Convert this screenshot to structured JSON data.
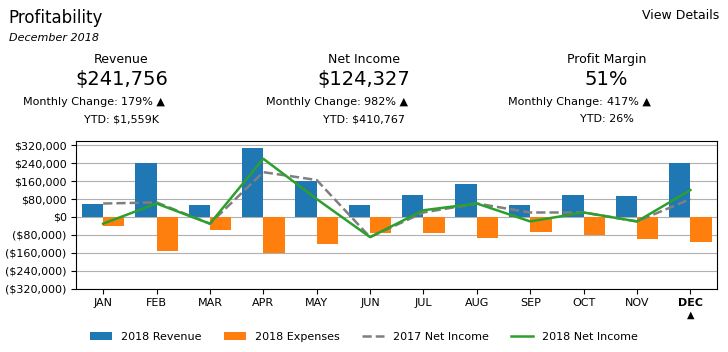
{
  "chart_data": {
    "type": "bar",
    "title": "Profitability",
    "subtitle": "December 2018",
    "annotations": {
      "link": "View Details",
      "highlight": "▲",
      "kpis": [
        {
          "label": "Revenue",
          "value": "$241,756",
          "change_label": "Monthly Change: ",
          "change": "179% ▲",
          "ytd": "YTD: $1,559K"
        },
        {
          "label": "Net Income",
          "value": "$124,327",
          "change_label": "Monthly Change: ",
          "change": "982% ▲",
          "ytd": "YTD: $410,767"
        },
        {
          "label": "Profit Margin",
          "value": "51%",
          "change_label": "Monthly Change: ",
          "change": "417% ▲",
          "ytd": "YTD: 26%"
        }
      ]
    },
    "categories": [
      "JAN",
      "FEB",
      "MAR",
      "APR",
      "MAY",
      "JUN",
      "JUL",
      "AUG",
      "SEP",
      "OCT",
      "NOV",
      "DEC"
    ],
    "series": [
      {
        "name": "2018 Revenue",
        "type": "bar",
        "color": "#1f77b4",
        "values": [
          60000,
          240000,
          55000,
          310000,
          160000,
          55000,
          100000,
          145000,
          55000,
          100000,
          95000,
          240000
        ]
      },
      {
        "name": "2018 Expenses",
        "type": "bar",
        "color": "#ff7f0e",
        "values": [
          -40000,
          -150000,
          -60000,
          -160000,
          -120000,
          -70000,
          -70000,
          -95000,
          -65000,
          -80000,
          -100000,
          -110000
        ]
      },
      {
        "name": "2017 Net Income",
        "type": "line",
        "line_style": "dashed",
        "color": "#7f7f7f",
        "values": [
          60000,
          65000,
          -30000,
          200000,
          165000,
          -90000,
          20000,
          60000,
          20000,
          20000,
          -20000,
          80000
        ]
      },
      {
        "name": "2018 Net Income",
        "type": "line",
        "line_style": "solid",
        "color": "#2ca02c",
        "values": [
          -30000,
          60000,
          -30000,
          260000,
          80000,
          -90000,
          30000,
          60000,
          -20000,
          20000,
          -20000,
          120000
        ]
      }
    ],
    "ylim": [
      -320000,
      340000
    ],
    "yticks": [
      {
        "value": 320000,
        "label": "$320,000"
      },
      {
        "value": 240000,
        "label": "$240,000"
      },
      {
        "value": 160000,
        "label": "$160,000"
      },
      {
        "value": 80000,
        "label": "$80,000"
      },
      {
        "value": 0,
        "label": "$0"
      },
      {
        "value": -80000,
        "label": "($80,000)"
      },
      {
        "value": -160000,
        "label": "($160,000)"
      },
      {
        "value": -240000,
        "label": "($240,000)"
      },
      {
        "value": -320000,
        "label": "($320,000)"
      }
    ],
    "grid": true,
    "legend": "lower center"
  }
}
